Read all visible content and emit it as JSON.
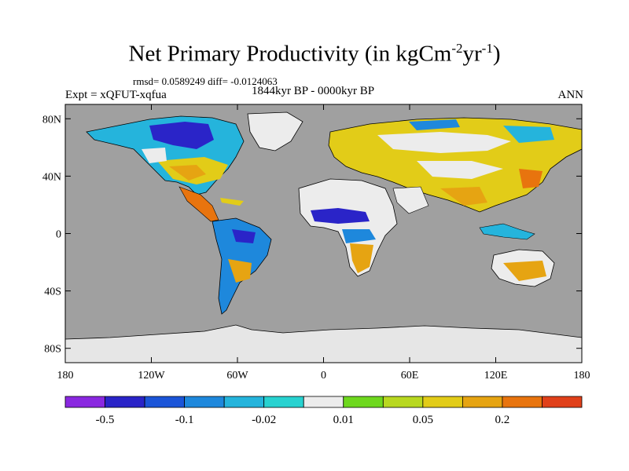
{
  "title": {
    "main": "Net Primary Productivity (in kgCm",
    "exp1": "-2",
    "mid": "yr",
    "exp2": "-1",
    "close": ")"
  },
  "stats_line": "rmsd= 0.0589249 diff= -0.0124063",
  "experiment_label": "Expt = xQFUT-xqfua",
  "period_label": "1844kyr BP - 0000kyr BP",
  "season_label": "ANN",
  "map": {
    "projection": "cylindrical-equidistant",
    "lon_range": [
      -180,
      180
    ],
    "lat_range": [
      -90,
      90
    ],
    "ocean_color": "#a0a0a0",
    "ice_color": "#e6e6e6",
    "lat_ticks": [
      {
        "value": 80,
        "label": "80N"
      },
      {
        "value": 40,
        "label": "40N"
      },
      {
        "value": 0,
        "label": "0"
      },
      {
        "value": -40,
        "label": "40S"
      },
      {
        "value": -80,
        "label": "80S"
      }
    ],
    "lon_ticks": [
      {
        "value": -180,
        "label": "180"
      },
      {
        "value": -120,
        "label": "120W"
      },
      {
        "value": -60,
        "label": "60W"
      },
      {
        "value": 0,
        "label": "0"
      },
      {
        "value": 60,
        "label": "60E"
      },
      {
        "value": 120,
        "label": "120E"
      },
      {
        "value": 180,
        "label": "180"
      }
    ]
  },
  "colorbar": {
    "colors": [
      "#8a28e0",
      "#2a24c8",
      "#1b55d8",
      "#1e88dc",
      "#25b4dc",
      "#28d2d0",
      "#ececec",
      "#6ed81e",
      "#b8d820",
      "#e2cc18",
      "#e6a412",
      "#e8740e",
      "#e0401a"
    ],
    "labels": [
      {
        "after_box": 1,
        "text": "-0.5"
      },
      {
        "after_box": 3,
        "text": "-0.1"
      },
      {
        "after_box": 5,
        "text": "-0.02"
      },
      {
        "after_box": 7,
        "text": "0.01"
      },
      {
        "after_box": 9,
        "text": "0.05"
      },
      {
        "after_box": 11,
        "text": "0.2"
      }
    ]
  }
}
